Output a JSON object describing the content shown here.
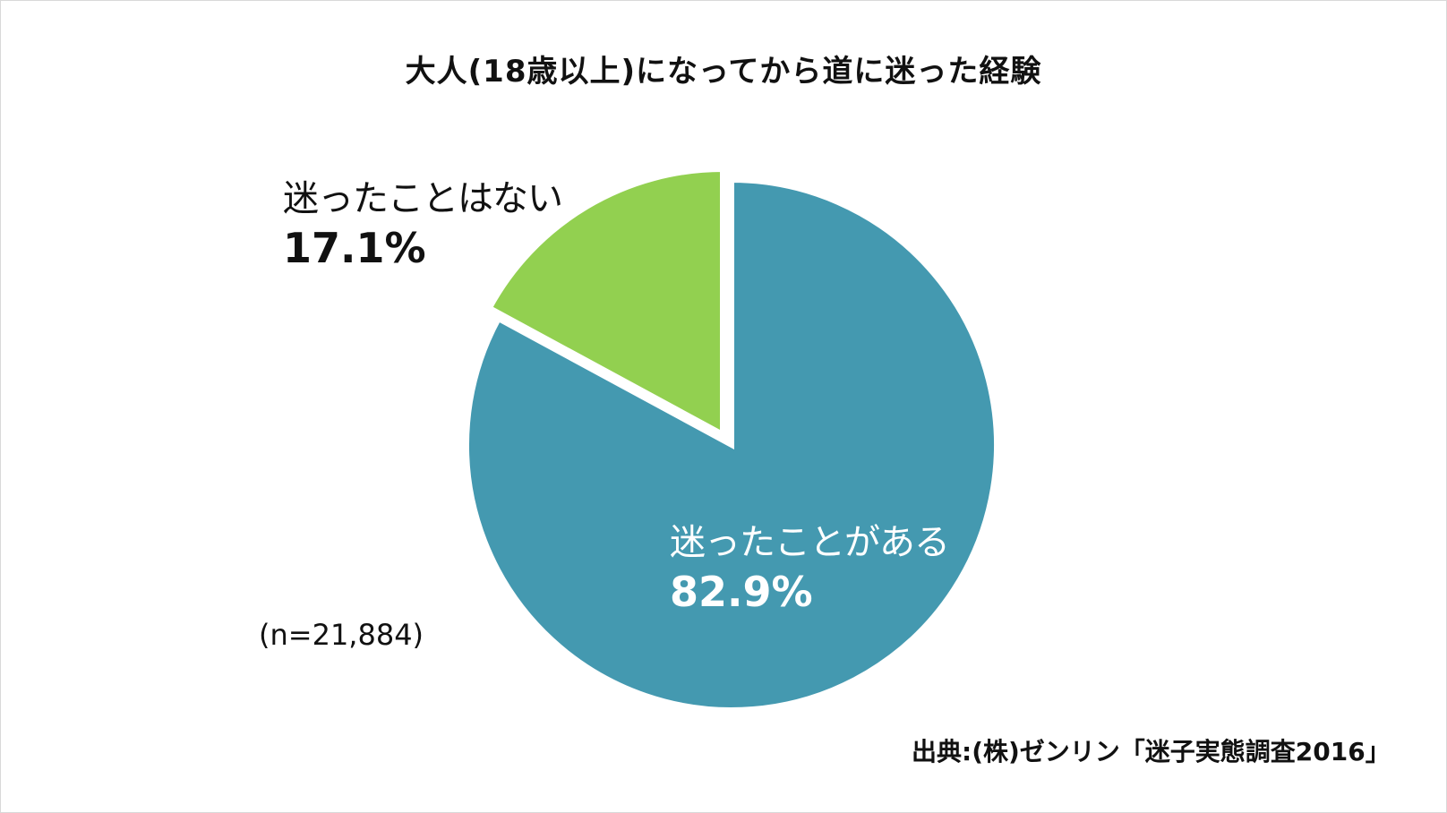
{
  "chart_data": {
    "type": "pie",
    "title": "大人(18歳以上)になってから道に迷った経験",
    "slices": [
      {
        "label": "迷ったことがある",
        "value": 82.9,
        "value_label": "82.9%",
        "color": "#4499b0"
      },
      {
        "label": "迷ったことはない",
        "value": 17.1,
        "value_label": "17.1%",
        "color": "#92d050"
      }
    ],
    "annotation": "(n=21,884)",
    "source": "出典:(株)ゼンリン「迷子実態調査2016」"
  }
}
